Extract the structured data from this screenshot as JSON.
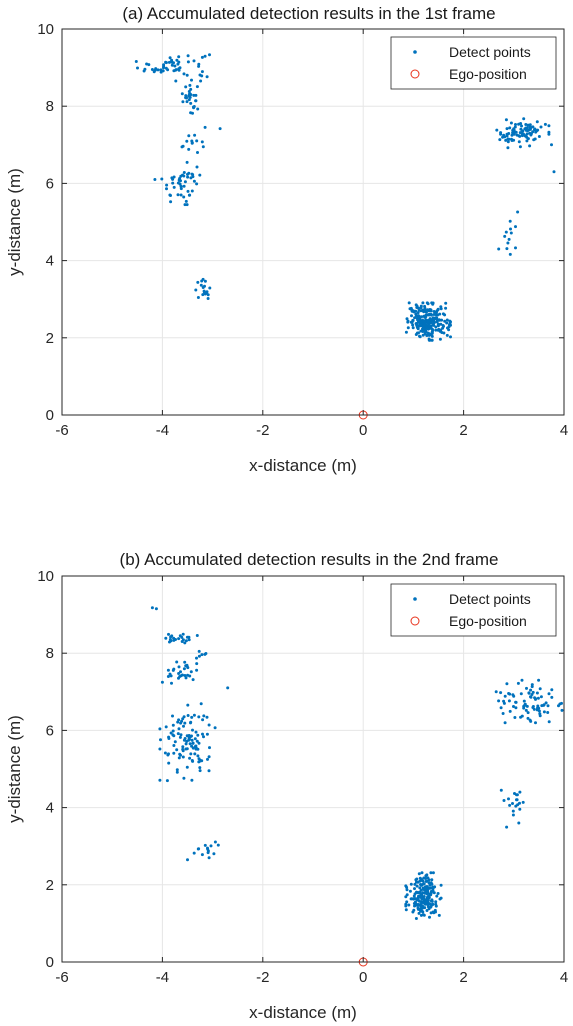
{
  "chart_data": [
    {
      "type": "scatter",
      "title": "(a) Accumulated detection results in the 1st frame",
      "xlabel": "x-distance (m)",
      "ylabel": "y-distance (m)",
      "xlim": [
        -6,
        4
      ],
      "ylim": [
        0,
        10
      ],
      "xticks": [
        "-6",
        "-4",
        "-2",
        "0",
        "2",
        "4"
      ],
      "yticks": [
        "0",
        "2",
        "4",
        "6",
        "8",
        "10"
      ],
      "grid": true,
      "legend_position": "top-right",
      "legend": [
        "Detect points",
        "Ego-position"
      ],
      "series_colors": {
        "detect": "#0072BD",
        "ego": "#E8311A"
      },
      "ego_position": {
        "x": 0,
        "y": 0
      },
      "detect_points": [
        {
          "cx": -3.75,
          "cy": 9.05,
          "sx": 0.35,
          "sy": 0.18,
          "n": 55
        },
        {
          "cx": -3.45,
          "cy": 8.25,
          "sx": 0.07,
          "sy": 0.2,
          "n": 30
        },
        {
          "cx": -3.45,
          "cy": 7.05,
          "sx": 0.12,
          "sy": 0.12,
          "n": 12
        },
        {
          "cx": -3.6,
          "cy": 6.0,
          "sx": 0.2,
          "sy": 0.25,
          "n": 45
        },
        {
          "cx": -3.2,
          "cy": 3.25,
          "sx": 0.08,
          "sy": 0.12,
          "n": 18
        },
        {
          "cx": 1.3,
          "cy": 2.42,
          "sx": 0.2,
          "sy": 0.22,
          "n": 230
        },
        {
          "cx": 3.15,
          "cy": 7.3,
          "sx": 0.25,
          "sy": 0.17,
          "n": 90
        },
        {
          "cx": 2.95,
          "cy": 4.75,
          "sx": 0.1,
          "sy": 0.3,
          "n": 12
        }
      ],
      "detect_singletons": [
        [
          -4.2,
          8.95
        ],
        [
          -2.85,
          7.42
        ],
        [
          -3.15,
          7.45
        ],
        [
          -3.3,
          6.8
        ],
        [
          -4.15,
          6.1
        ],
        [
          -3.85,
          5.7
        ],
        [
          -3.55,
          5.45
        ],
        [
          3.8,
          6.3
        ],
        [
          3.75,
          7.0
        ],
        [
          2.7,
          4.3
        ],
        [
          3.3,
          9.4
        ]
      ]
    },
    {
      "type": "scatter",
      "title": "(b) Accumulated detection results in the 2nd frame",
      "xlabel": "x-distance (m)",
      "ylabel": "y-distance (m)",
      "xlim": [
        -6,
        4
      ],
      "ylim": [
        0,
        10
      ],
      "xticks": [
        "-6",
        "-4",
        "-2",
        "0",
        "2",
        "4"
      ],
      "yticks": [
        "0",
        "2",
        "4",
        "6",
        "8",
        "10"
      ],
      "grid": true,
      "legend_position": "top-right",
      "legend": [
        "Detect points",
        "Ego-position"
      ],
      "series_colors": {
        "detect": "#0072BD",
        "ego": "#E8311A"
      },
      "ego_position": {
        "x": 0,
        "y": 0
      },
      "detect_points": [
        {
          "cx": -3.7,
          "cy": 8.38,
          "sx": 0.18,
          "sy": 0.07,
          "n": 22
        },
        {
          "cx": -3.55,
          "cy": 7.55,
          "sx": 0.15,
          "sy": 0.15,
          "n": 30
        },
        {
          "cx": -3.25,
          "cy": 7.95,
          "sx": 0.06,
          "sy": 0.1,
          "n": 5
        },
        {
          "cx": -3.5,
          "cy": 5.7,
          "sx": 0.25,
          "sy": 0.45,
          "n": 110
        },
        {
          "cx": -3.15,
          "cy": 2.95,
          "sx": 0.12,
          "sy": 0.13,
          "n": 14
        },
        {
          "cx": 1.2,
          "cy": 1.72,
          "sx": 0.16,
          "sy": 0.27,
          "n": 200
        },
        {
          "cx": 3.3,
          "cy": 6.75,
          "sx": 0.3,
          "sy": 0.25,
          "n": 80
        },
        {
          "cx": 2.95,
          "cy": 4.0,
          "sx": 0.12,
          "sy": 0.25,
          "n": 18
        }
      ],
      "detect_singletons": [
        [
          -4.2,
          9.18
        ],
        [
          -4.12,
          9.15
        ],
        [
          -2.7,
          7.1
        ],
        [
          -4.0,
          7.25
        ],
        [
          -3.9,
          4.7
        ],
        [
          -3.5,
          2.65
        ],
        [
          3.95,
          6.7
        ],
        [
          2.65,
          7.0
        ],
        [
          2.75,
          4.45
        ],
        [
          3.1,
          3.6
        ]
      ]
    }
  ]
}
